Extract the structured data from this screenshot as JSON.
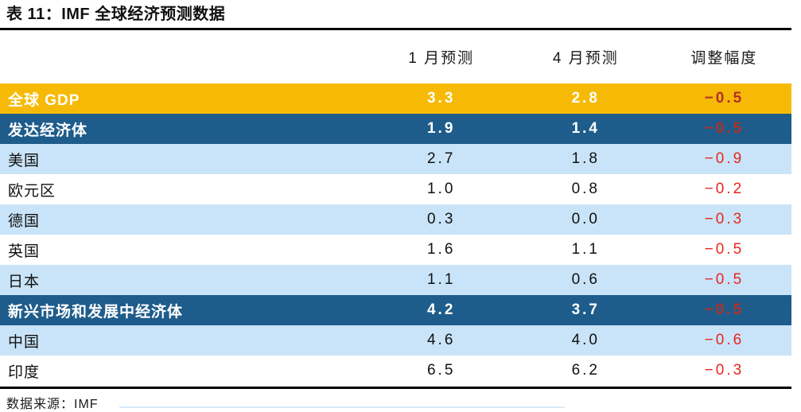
{
  "table": {
    "title": "表 11：IMF 全球经济预测数据",
    "columns": [
      "",
      "1 月预测",
      "4 月预测",
      "调整幅度"
    ],
    "rows": [
      {
        "label": "全球 GDP",
        "jan": "3.3",
        "apr": "2.8",
        "adj": "−0.5",
        "style": "gold"
      },
      {
        "label": "发达经济体",
        "jan": "1.9",
        "apr": "1.4",
        "adj": "−0.5",
        "style": "dark"
      },
      {
        "label": "美国",
        "jan": "2.7",
        "apr": "1.8",
        "adj": "−0.9",
        "style": "light"
      },
      {
        "label": "欧元区",
        "jan": "1.0",
        "apr": "0.8",
        "adj": "−0.2",
        "style": "white"
      },
      {
        "label": "德国",
        "jan": "0.3",
        "apr": "0.0",
        "adj": "−0.3",
        "style": "light"
      },
      {
        "label": "英国",
        "jan": "1.6",
        "apr": "1.1",
        "adj": "−0.5",
        "style": "white"
      },
      {
        "label": "日本",
        "jan": "1.1",
        "apr": "0.6",
        "adj": "−0.5",
        "style": "light"
      },
      {
        "label": "新兴市场和发展中经济体",
        "jan": "4.2",
        "apr": "3.7",
        "adj": "−0.5",
        "style": "dark"
      },
      {
        "label": "中国",
        "jan": "4.6",
        "apr": "4.0",
        "adj": "−0.6",
        "style": "light"
      },
      {
        "label": "印度",
        "jan": "6.5",
        "apr": "6.2",
        "adj": "−0.3",
        "style": "white"
      }
    ],
    "source": "数据来源：IMF"
  },
  "colors": {
    "gold_row_bg": "#F6BA06",
    "dark_blue_row_bg": "#1E5C8B",
    "light_blue_row_bg": "#C9E4F8",
    "bright_red_text": "#E8251E",
    "dark_red_text": "#B23028",
    "rule_black": "#000000"
  },
  "chart_data": {
    "type": "table",
    "title": "表 11：IMF 全球经济预测数据",
    "columns": [
      "1 月预测",
      "4 月预测",
      "调整幅度"
    ],
    "rows": [
      [
        "全球 GDP",
        3.3,
        2.8,
        -0.5
      ],
      [
        "发达经济体",
        1.9,
        1.4,
        -0.5
      ],
      [
        "美国",
        2.7,
        1.8,
        -0.9
      ],
      [
        "欧元区",
        1.0,
        0.8,
        -0.2
      ],
      [
        "德国",
        0.3,
        0.0,
        -0.3
      ],
      [
        "英国",
        1.6,
        1.1,
        -0.5
      ],
      [
        "日本",
        1.1,
        0.6,
        -0.5
      ],
      [
        "新兴市场和发展中经济体",
        4.2,
        3.7,
        -0.5
      ],
      [
        "中国",
        4.6,
        4.0,
        -0.6
      ],
      [
        "印度",
        6.5,
        6.2,
        -0.3
      ]
    ],
    "section_rows": [
      "发达经济体",
      "新兴市场和发展中经济体"
    ],
    "highlight_row": "全球 GDP",
    "source": "数据来源：IMF"
  }
}
